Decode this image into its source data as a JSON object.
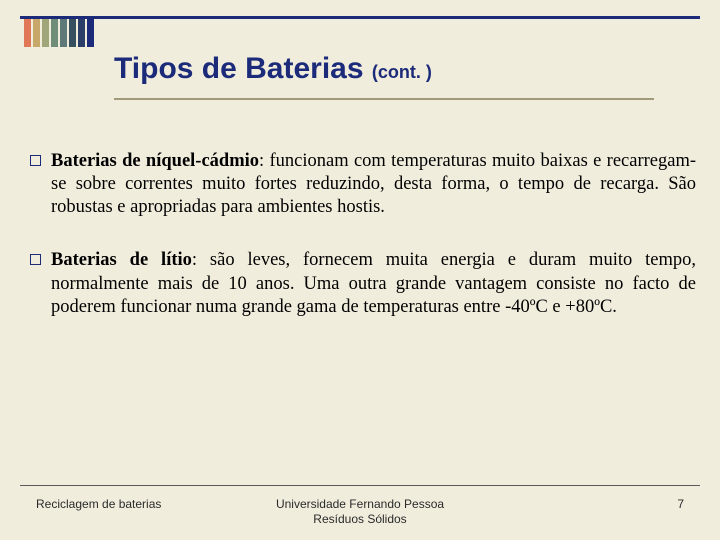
{
  "deco_colors": [
    "#e07858",
    "#c7a86a",
    "#a0a67a",
    "#6f8d78",
    "#5f7878",
    "#37505f",
    "#2a3e68",
    "#1c2a7a"
  ],
  "title": {
    "main": "Tipos de Baterias ",
    "cont": "(cont. )"
  },
  "bullets": [
    {
      "bold": "Baterias de níquel-cádmio",
      "rest": ": funcionam com temperaturas muito baixas e recarregam-se sobre correntes muito fortes reduzindo, desta forma, o tempo de recarga. São robustas e apropriadas para ambientes hostis."
    },
    {
      "bold": "Baterias de lítio",
      "rest": ": são leves, fornecem muita energia e duram muito tempo, normalmente mais de 10 anos. Uma outra grande vantagem consiste no facto de poderem funcionar numa grande gama de temperaturas entre -40ºC e +80ºC."
    }
  ],
  "footer": {
    "left": "Reciclagem de baterias",
    "center_line1": "Universidade Fernando Pessoa",
    "center_line2": "Resíduos Sólidos",
    "page": "7"
  }
}
